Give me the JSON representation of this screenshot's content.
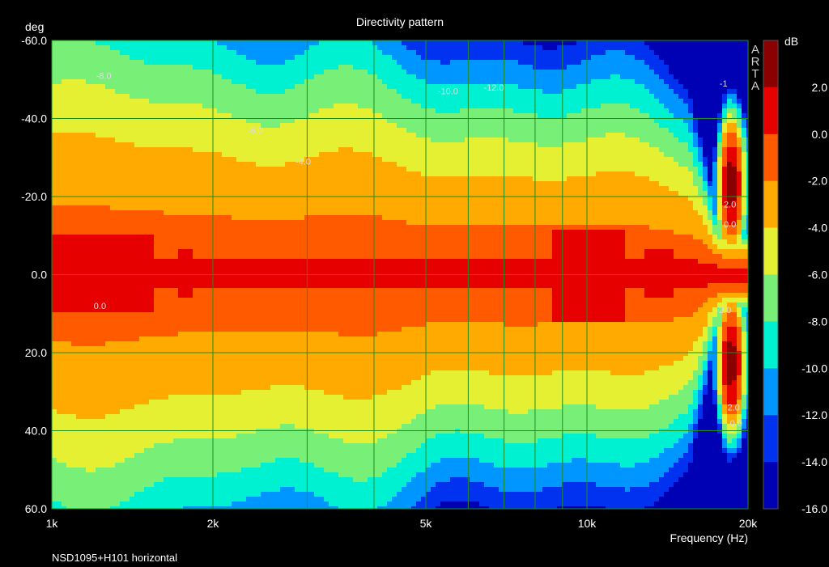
{
  "chart_data": {
    "type": "heatmap",
    "title": "Directivity pattern",
    "xlabel": "Frequency (Hz)",
    "ylabel": "deg",
    "footer": "NSD1095+H101 horizontal",
    "watermark": "ARTA",
    "x_scale": "log",
    "xlim": [
      1000,
      20000
    ],
    "ylim": [
      -60,
      60
    ],
    "x_ticks": [
      {
        "value": 1000,
        "label": "1k"
      },
      {
        "value": 2000,
        "label": "2k"
      },
      {
        "value": 5000,
        "label": "5k"
      },
      {
        "value": 10000,
        "label": "10k"
      },
      {
        "value": 20000,
        "label": "20k"
      }
    ],
    "y_ticks": [
      {
        "value": -60,
        "label": "-60.0"
      },
      {
        "value": -40,
        "label": "-40.0"
      },
      {
        "value": -20,
        "label": "-20.0"
      },
      {
        "value": 0,
        "label": "0.0"
      },
      {
        "value": 20,
        "label": "20.0"
      },
      {
        "value": 40,
        "label": "40.0"
      },
      {
        "value": 60,
        "label": "60.0"
      }
    ],
    "grid": true,
    "colorbar": {
      "unit": "dB",
      "placement": "right",
      "ticks": [
        "2.0",
        "0.0",
        "-2.0",
        "-4.0",
        "-6.0",
        "-8.0",
        "-10.0",
        "-12.0",
        "-14.0",
        "-16.0"
      ],
      "levels": [
        {
          "min": 2,
          "color": "#8b0000"
        },
        {
          "min": 0,
          "color": "#e60000"
        },
        {
          "min": -2,
          "color": "#ff5a00"
        },
        {
          "min": -4,
          "color": "#ffaa00"
        },
        {
          "min": -6,
          "color": "#e6f032"
        },
        {
          "min": -8,
          "color": "#78f078"
        },
        {
          "min": -10,
          "color": "#00f0d2"
        },
        {
          "min": -12,
          "color": "#0096ff"
        },
        {
          "min": -14,
          "color": "#0032f0"
        },
        {
          "min": -16,
          "color": "#0000b4"
        }
      ]
    },
    "contour_labels": [
      {
        "freq": 1250,
        "angle": -51,
        "text": "-8.0"
      },
      {
        "freq": 2400,
        "angle": -37,
        "text": "-6.0"
      },
      {
        "freq": 2950,
        "angle": -29,
        "text": "-4.0"
      },
      {
        "freq": 1230,
        "angle": 8,
        "text": "0.0"
      },
      {
        "freq": 5500,
        "angle": -47,
        "text": "-10.0"
      },
      {
        "freq": 6700,
        "angle": -48,
        "text": "-12.0"
      },
      {
        "freq": 18000,
        "angle": -49,
        "text": "-1"
      },
      {
        "freq": 18500,
        "angle": -18,
        "text": "2.0"
      },
      {
        "freq": 18500,
        "angle": -13,
        "text": "0.0"
      },
      {
        "freq": 18000,
        "angle": 9,
        "text": "-2.0"
      },
      {
        "freq": 18800,
        "angle": 34,
        "text": "2.0"
      },
      {
        "freq": 19000,
        "angle": 38,
        "text": "0.0"
      }
    ],
    "features": {
      "on_axis_peaks": [
        {
          "freq_min": 1000,
          "freq_max": 1550,
          "angle_half": 10,
          "level": 0.5
        },
        {
          "freq_min": 1720,
          "freq_max": 1840,
          "angle_half": 6,
          "level": 0.3
        },
        {
          "freq_min": 8600,
          "freq_max": 11800,
          "angle_half": 12,
          "level": 0.6
        },
        {
          "freq_min": 12900,
          "freq_max": 14600,
          "angle_half": 6,
          "level": 0.3
        }
      ],
      "off_axis_lobes": [
        {
          "freq": 18600,
          "angle": -23,
          "level": 3.0
        },
        {
          "freq": 18600,
          "angle": 23,
          "level": 3.0
        }
      ]
    }
  }
}
